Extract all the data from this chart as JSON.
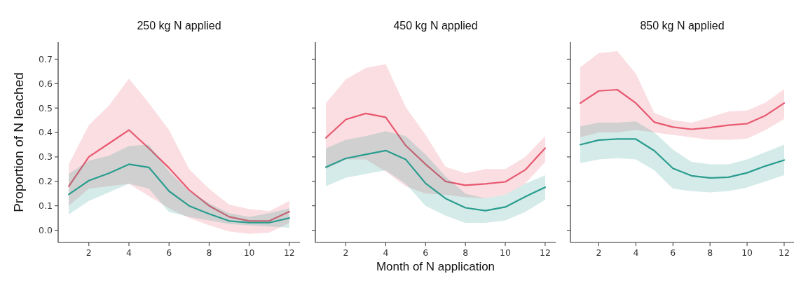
{
  "chart_data": [
    {
      "type": "line",
      "title": "250 kg N applied",
      "ylabel": "Proportion of N leached",
      "x": [
        1,
        2,
        3,
        4,
        5,
        6,
        7,
        8,
        9,
        10,
        11,
        12
      ],
      "xlim": [
        0.47,
        12.53
      ],
      "xticks": [
        2,
        4,
        6,
        8,
        10,
        12
      ],
      "ylim": [
        -0.05,
        0.77
      ],
      "yticks": [
        {
          "value": 0.0,
          "label": "0.0"
        },
        {
          "value": 0.1,
          "label": "0.1"
        },
        {
          "value": 0.2,
          "label": "0.2"
        },
        {
          "value": 0.3,
          "label": "0.3"
        },
        {
          "value": 0.4,
          "label": "0.4"
        },
        {
          "value": 0.5,
          "label": "0.5"
        },
        {
          "value": 0.6,
          "label": "0.6"
        },
        {
          "value": 0.7,
          "label": "0.7"
        }
      ],
      "grid": false,
      "series": [
        {
          "color": "#e8586f",
          "values": [
            0.18,
            0.3,
            0.355,
            0.41,
            0.335,
            0.255,
            0.165,
            0.1,
            0.055,
            0.038,
            0.038,
            0.076
          ],
          "upper": [
            0.27,
            0.43,
            0.51,
            0.62,
            0.52,
            0.41,
            0.25,
            0.17,
            0.105,
            0.087,
            0.078,
            0.12
          ],
          "lower": [
            0.1,
            0.17,
            0.18,
            0.19,
            0.14,
            0.09,
            0.05,
            0.02,
            -0.005,
            -0.015,
            -0.01,
            0.03
          ]
        },
        {
          "color": "#2a9d8f",
          "values": [
            0.147,
            0.203,
            0.233,
            0.27,
            0.257,
            0.16,
            0.1,
            0.067,
            0.038,
            0.031,
            0.031,
            0.05
          ],
          "upper": [
            0.23,
            0.285,
            0.305,
            0.345,
            0.35,
            0.24,
            0.16,
            0.11,
            0.07,
            0.055,
            0.07,
            0.09
          ],
          "lower": [
            0.065,
            0.12,
            0.155,
            0.19,
            0.17,
            0.075,
            0.055,
            0.04,
            0.025,
            0.02,
            0.015,
            0.01
          ]
        }
      ]
    },
    {
      "type": "line",
      "title": "450 kg N applied",
      "xlabel": "Month of N application",
      "x": [
        1,
        2,
        3,
        4,
        5,
        6,
        7,
        8,
        9,
        10,
        11,
        12
      ],
      "xlim": [
        0.47,
        12.53
      ],
      "xticks": [
        2,
        4,
        6,
        8,
        10,
        12
      ],
      "ylim": [
        -0.05,
        0.77
      ],
      "yticks": [
        {
          "value": 0.0,
          "label": null
        },
        {
          "value": 0.1,
          "label": null
        },
        {
          "value": 0.2,
          "label": null
        },
        {
          "value": 0.3,
          "label": null
        },
        {
          "value": 0.4,
          "label": null
        },
        {
          "value": 0.5,
          "label": null
        },
        {
          "value": 0.6,
          "label": null
        },
        {
          "value": 0.7,
          "label": null
        }
      ],
      "tick_labels": "x",
      "grid": false,
      "series": [
        {
          "color": "#e8586f",
          "values": [
            0.378,
            0.453,
            0.478,
            0.462,
            0.347,
            0.27,
            0.2,
            0.184,
            0.19,
            0.198,
            0.247,
            0.336
          ],
          "upper": [
            0.52,
            0.617,
            0.664,
            0.68,
            0.505,
            0.39,
            0.26,
            0.233,
            0.25,
            0.25,
            0.3,
            0.385
          ],
          "lower": [
            0.25,
            0.29,
            0.29,
            0.24,
            0.18,
            0.15,
            0.145,
            0.135,
            0.13,
            0.145,
            0.19,
            0.28
          ]
        },
        {
          "color": "#2a9d8f",
          "values": [
            0.258,
            0.294,
            0.31,
            0.326,
            0.29,
            0.192,
            0.13,
            0.092,
            0.08,
            0.095,
            0.137,
            0.176
          ],
          "upper": [
            0.335,
            0.37,
            0.385,
            0.405,
            0.385,
            0.31,
            0.22,
            0.15,
            0.13,
            0.145,
            0.19,
            0.225
          ],
          "lower": [
            0.18,
            0.215,
            0.23,
            0.245,
            0.19,
            0.1,
            0.06,
            0.03,
            0.03,
            0.04,
            0.075,
            0.125
          ]
        }
      ]
    },
    {
      "type": "line",
      "title": "850 kg N applied",
      "x": [
        1,
        2,
        3,
        4,
        5,
        6,
        7,
        8,
        9,
        10,
        11,
        12
      ],
      "xlim": [
        0.47,
        12.53
      ],
      "xticks": [
        2,
        4,
        6,
        8,
        10,
        12
      ],
      "ylim": [
        -0.05,
        0.77
      ],
      "yticks": [
        {
          "value": 0.0,
          "label": null
        },
        {
          "value": 0.1,
          "label": null
        },
        {
          "value": 0.2,
          "label": null
        },
        {
          "value": 0.3,
          "label": null
        },
        {
          "value": 0.4,
          "label": null
        },
        {
          "value": 0.5,
          "label": null
        },
        {
          "value": 0.6,
          "label": null
        },
        {
          "value": 0.7,
          "label": null
        }
      ],
      "tick_labels": "x",
      "grid": false,
      "series": [
        {
          "color": "#e8586f",
          "values": [
            0.52,
            0.57,
            0.575,
            0.52,
            0.442,
            0.422,
            0.413,
            0.42,
            0.43,
            0.436,
            0.47,
            0.52
          ],
          "upper": [
            0.667,
            0.725,
            0.733,
            0.64,
            0.48,
            0.45,
            0.44,
            0.462,
            0.486,
            0.49,
            0.523,
            0.577
          ],
          "lower": [
            0.38,
            0.4,
            0.4,
            0.41,
            0.4,
            0.39,
            0.38,
            0.37,
            0.37,
            0.375,
            0.41,
            0.455
          ]
        },
        {
          "color": "#2a9d8f",
          "values": [
            0.35,
            0.369,
            0.373,
            0.373,
            0.325,
            0.253,
            0.223,
            0.214,
            0.217,
            0.235,
            0.263,
            0.287
          ],
          "upper": [
            0.425,
            0.44,
            0.44,
            0.445,
            0.4,
            0.33,
            0.28,
            0.27,
            0.27,
            0.29,
            0.32,
            0.35
          ],
          "lower": [
            0.275,
            0.29,
            0.295,
            0.29,
            0.245,
            0.17,
            0.16,
            0.155,
            0.16,
            0.175,
            0.2,
            0.225
          ]
        }
      ]
    }
  ]
}
